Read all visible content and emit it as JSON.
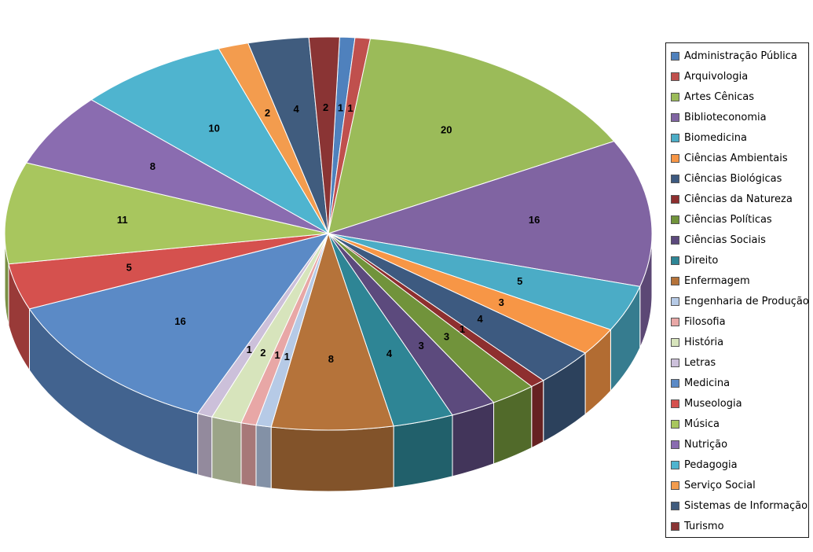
{
  "chart_data": {
    "type": "pie",
    "style": "3d-exploded-perspective",
    "categories": [
      "Administração Pública",
      "Arquivologia",
      "Artes Cênicas",
      "Biblioteconomia",
      "Biomedicina",
      "Ciências Ambientais",
      "Ciências Biológicas",
      "Ciências da Natureza",
      "Ciências Políticas",
      "Ciências Sociais",
      "Direito",
      "Enfermagem",
      "Engenharia de Produção",
      "Filosofia",
      "História",
      "Letras",
      "Medicina",
      "Museologia",
      "Música",
      "Nutrição",
      "Pedagogia",
      "Serviço Social",
      "Sistemas de Informação",
      "Turismo"
    ],
    "values": [
      1,
      1,
      20,
      16,
      5,
      3,
      4,
      1,
      3,
      3,
      4,
      8,
      1,
      1,
      2,
      1,
      16,
      5,
      11,
      8,
      10,
      2,
      4,
      2
    ],
    "data_labels": [
      "1",
      "1",
      "20",
      "16",
      "5",
      "3",
      "4",
      "1",
      "3",
      "3",
      "4",
      "8",
      "1",
      "1",
      "2",
      "1",
      "16",
      "5",
      "11",
      "8",
      "10",
      "2",
      "4",
      "2"
    ],
    "colors": [
      "#4F81BD",
      "#C0504D",
      "#9BBB59",
      "#8064A2",
      "#4BACC6",
      "#F79646",
      "#3D5A80",
      "#8E2F2F",
      "#71933B",
      "#5C4A7D",
      "#2E8595",
      "#B5733A",
      "#B6CAE6",
      "#E8A7A6",
      "#D7E4BC",
      "#CCC0DA",
      "#5B8AC6",
      "#D5514E",
      "#A8C65E",
      "#8A6CB0",
      "#4FB4CF",
      "#F39C4E",
      "#405C7E",
      "#8A3434"
    ],
    "legend_position": "right",
    "title": ""
  }
}
